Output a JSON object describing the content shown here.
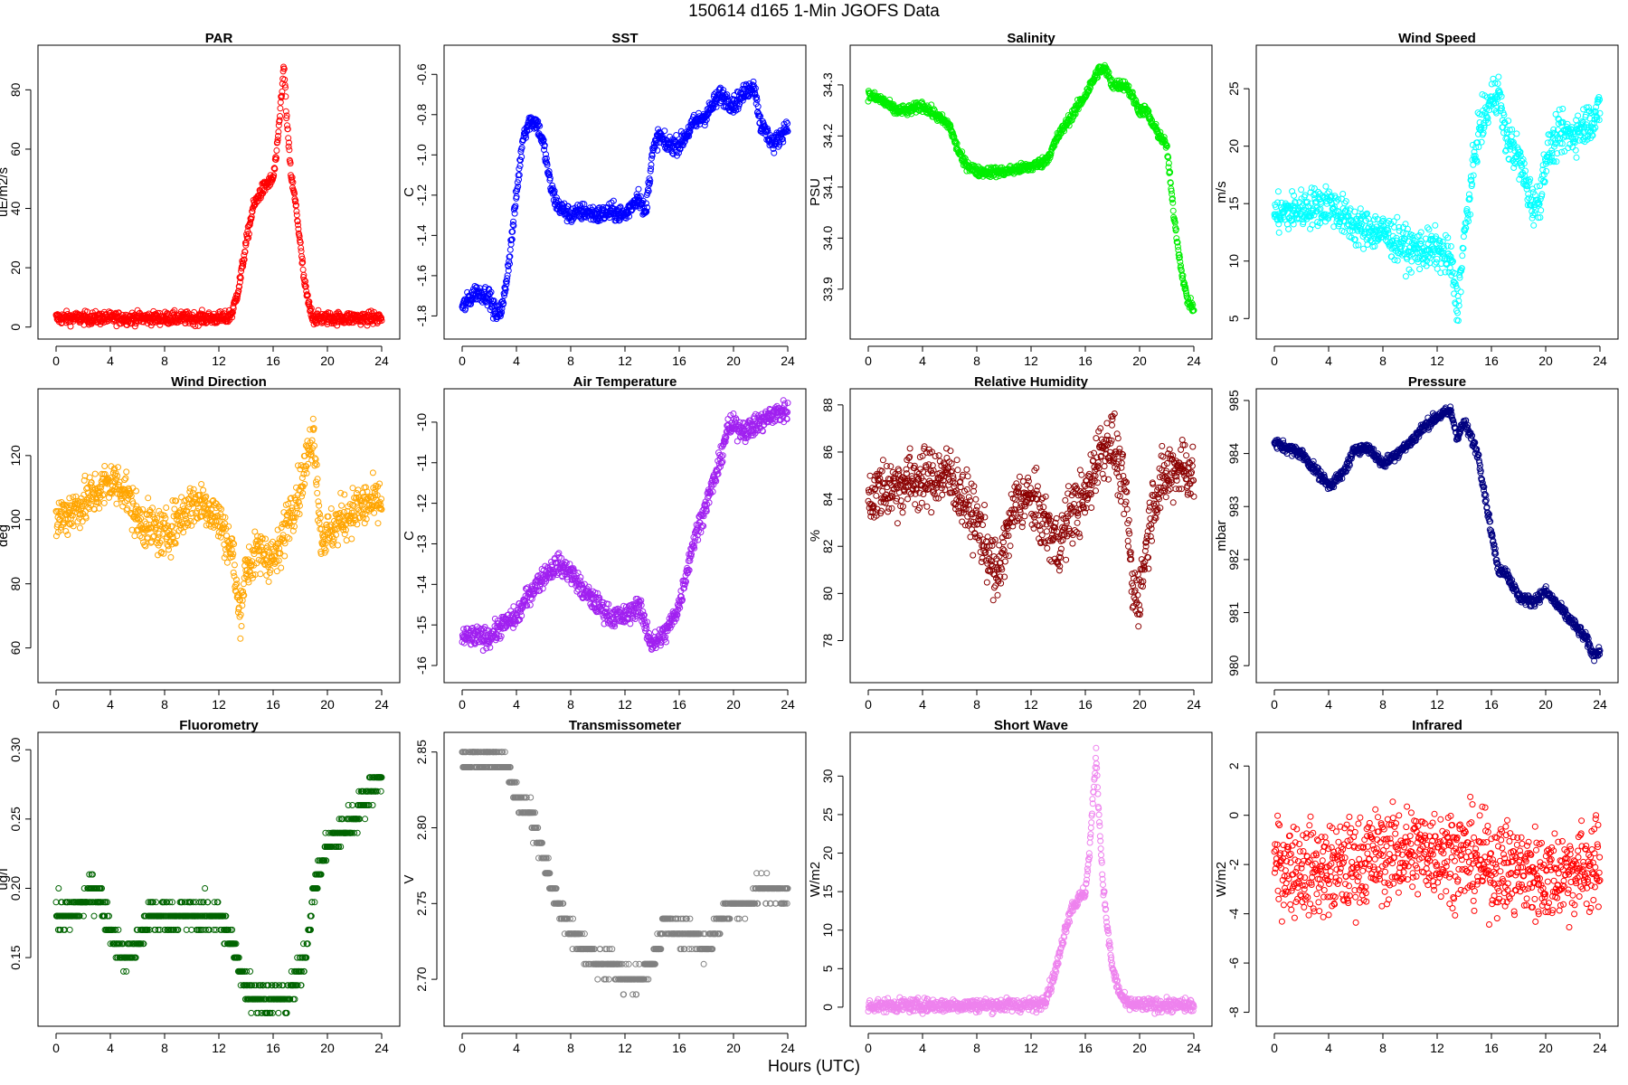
{
  "figure": {
    "title": "150614   d165   1-Min  JGOFS Data",
    "xlabel": "Hours (UTC)"
  },
  "chart_data": [
    {
      "type": "scatter",
      "title": "PAR",
      "ylabel": "uE/m2/s",
      "color": "#ff0000",
      "xlim": [
        0,
        24
      ],
      "ylim": [
        -1,
        92
      ],
      "xticks": [
        0,
        4,
        8,
        12,
        16,
        20,
        24
      ],
      "yticks": [
        0,
        20,
        40,
        60,
        80
      ],
      "ytick_labels": [
        "0",
        "20",
        "40",
        "60",
        "80"
      ],
      "profile": {
        "x": [
          0,
          12.6,
          13.0,
          13.5,
          14.0,
          14.5,
          15.0,
          15.5,
          16.0,
          16.3,
          16.6,
          16.8,
          17.0,
          17.3,
          17.7,
          18.0,
          18.3,
          18.7,
          19.0,
          19.3,
          24
        ],
        "y": [
          3,
          3,
          5,
          14,
          28,
          40,
          45,
          48,
          50,
          60,
          78,
          88,
          70,
          52,
          40,
          28,
          15,
          6,
          3,
          3,
          3
        ]
      },
      "noise": 1.5
    },
    {
      "type": "scatter",
      "title": "SST",
      "ylabel": "C",
      "color": "#0000ff",
      "xlim": [
        0,
        24
      ],
      "ylim": [
        -1.87,
        -0.5
      ],
      "xticks": [
        0,
        4,
        8,
        12,
        16,
        20,
        24
      ],
      "yticks": [
        -1.8,
        -1.6,
        -1.4,
        -1.2,
        -1.0,
        -0.8,
        -0.6
      ],
      "ytick_labels": [
        "-1.8",
        "-1.6",
        "-1.4",
        "-1.2",
        "-1.0",
        "-0.8",
        "-0.6"
      ],
      "profile": {
        "x": [
          0,
          0.5,
          1,
          2,
          2.5,
          3,
          3.5,
          4,
          4.5,
          5,
          5.5,
          6,
          6.5,
          7,
          8,
          9,
          10,
          11,
          12,
          13,
          13.5,
          14,
          14.5,
          15,
          16,
          17,
          18,
          19,
          20,
          21,
          21.5,
          22,
          23,
          24
        ],
        "y": [
          -1.76,
          -1.72,
          -1.68,
          -1.7,
          -1.8,
          -1.75,
          -1.5,
          -1.2,
          -0.9,
          -0.83,
          -0.84,
          -0.95,
          -1.15,
          -1.25,
          -1.3,
          -1.28,
          -1.3,
          -1.28,
          -1.3,
          -1.2,
          -1.3,
          -1.0,
          -0.9,
          -0.95,
          -0.95,
          -0.85,
          -0.8,
          -0.7,
          -0.75,
          -0.68,
          -0.65,
          -0.85,
          -0.95,
          -0.85
        ]
      },
      "noise": 0.03
    },
    {
      "type": "scatter",
      "title": "Salinity",
      "ylabel": "PSU",
      "color": "#00ee00",
      "xlim": [
        0,
        24
      ],
      "ylim": [
        33.82,
        34.36
      ],
      "xticks": [
        0,
        4,
        8,
        12,
        16,
        20,
        24
      ],
      "yticks": [
        33.9,
        34.0,
        34.1,
        34.2,
        34.3
      ],
      "ytick_labels": [
        "33.9",
        "34.0",
        "34.1",
        "34.2",
        "34.3"
      ],
      "profile": {
        "x": [
          0,
          1,
          2,
          3,
          4,
          5,
          6,
          6.5,
          7,
          7.5,
          8,
          10,
          12,
          13,
          13.5,
          14,
          15,
          16,
          17,
          17.5,
          18,
          19,
          20,
          20.5,
          21,
          22,
          22.5,
          23,
          23.5,
          24
        ],
        "y": [
          34.28,
          34.27,
          34.25,
          34.25,
          34.26,
          34.24,
          34.22,
          34.18,
          34.15,
          34.14,
          34.13,
          34.13,
          34.14,
          34.15,
          34.17,
          34.2,
          34.24,
          34.28,
          34.33,
          34.33,
          34.3,
          34.3,
          34.25,
          34.25,
          34.22,
          34.18,
          34.05,
          33.95,
          33.88,
          33.86
        ]
      },
      "noise": 0.007
    },
    {
      "type": "scatter",
      "title": "Wind Speed",
      "ylabel": "m/s",
      "color": "#00ffff",
      "xlim": [
        0,
        24
      ],
      "ylim": [
        4,
        28
      ],
      "xticks": [
        0,
        4,
        8,
        12,
        16,
        20,
        24
      ],
      "yticks": [
        5,
        10,
        15,
        20,
        25
      ],
      "ytick_labels": [
        "5",
        "10",
        "15",
        "20",
        "25"
      ],
      "profile": {
        "x": [
          0,
          2,
          4,
          6,
          8,
          10,
          12,
          13,
          13.5,
          14,
          15,
          16,
          16.5,
          17,
          18,
          19,
          19.5,
          20,
          21,
          22,
          23,
          24
        ],
        "y": [
          14,
          14.5,
          15,
          13,
          12.5,
          11,
          11,
          10,
          6,
          12,
          21,
          24,
          25,
          21,
          19,
          15,
          15,
          19,
          21,
          21,
          22,
          23
        ]
      },
      "noise": 1.2
    },
    {
      "type": "scatter",
      "title": "Wind Direction",
      "ylabel": "deg",
      "color": "#ffa500",
      "xlim": [
        0,
        24
      ],
      "ylim": [
        52,
        138
      ],
      "xticks": [
        0,
        4,
        8,
        12,
        16,
        20,
        24
      ],
      "yticks": [
        60,
        80,
        100,
        120
      ],
      "ytick_labels": [
        "60",
        "80",
        "100",
        "120"
      ],
      "profile": {
        "x": [
          0,
          2,
          4,
          5,
          6,
          8,
          9,
          10,
          11,
          12,
          13,
          13.5,
          14,
          15,
          16,
          16.5,
          17,
          18,
          19,
          19.5,
          20,
          21,
          22,
          23,
          24
        ],
        "y": [
          100,
          105,
          112,
          110,
          100,
          95,
          100,
          105,
          105,
          100,
          90,
          70,
          85,
          90,
          88,
          90,
          100,
          110,
          128,
          95,
          95,
          100,
          103,
          105,
          105
        ]
      },
      "noise": 5
    },
    {
      "type": "scatter",
      "title": "Air Temperature",
      "ylabel": "C",
      "color": "#a020f0",
      "xlim": [
        0,
        24
      ],
      "ylim": [
        -16.2,
        -9.4
      ],
      "xticks": [
        0,
        4,
        8,
        12,
        16,
        20,
        24
      ],
      "yticks": [
        -16,
        -15,
        -14,
        -13,
        -12,
        -11,
        -10
      ],
      "ytick_labels": [
        "-16",
        "-15",
        "-14",
        "-13",
        "-12",
        "-11",
        "-10"
      ],
      "profile": {
        "x": [
          0,
          2,
          3,
          4,
          5,
          6,
          7,
          8,
          9,
          10,
          11,
          12,
          13,
          14,
          15,
          16,
          17,
          18,
          19,
          19.5,
          20,
          21,
          22,
          23,
          24
        ],
        "y": [
          -15.3,
          -15.3,
          -15.0,
          -14.8,
          -14.2,
          -13.8,
          -13.5,
          -13.7,
          -14.2,
          -14.5,
          -14.8,
          -14.8,
          -14.5,
          -15.5,
          -15.2,
          -14.5,
          -13,
          -12,
          -11,
          -10.2,
          -10.1,
          -10.2,
          -10,
          -9.8,
          -9.7
        ]
      },
      "noise": 0.18
    },
    {
      "type": "scatter",
      "title": "Relative Humidity",
      "ylabel": "%",
      "color": "#8b0000",
      "xlim": [
        0,
        24
      ],
      "ylim": [
        76.6,
        88.3
      ],
      "xticks": [
        0,
        4,
        8,
        12,
        16,
        20,
        24
      ],
      "yticks": [
        78,
        80,
        82,
        84,
        86,
        88
      ],
      "ytick_labels": [
        "78",
        "80",
        "82",
        "84",
        "86",
        "88"
      ],
      "profile": {
        "x": [
          0,
          1,
          2,
          3,
          4,
          5,
          6,
          7,
          8,
          9,
          9.5,
          10,
          11,
          12,
          13,
          14,
          15,
          16,
          17,
          18,
          19,
          19.5,
          20,
          21,
          22,
          23,
          24
        ],
        "y": [
          84,
          84.5,
          84.5,
          84.8,
          84.8,
          85,
          85,
          84,
          83,
          81.5,
          80.5,
          82,
          84,
          84,
          83,
          82,
          83.5,
          84,
          86,
          86.5,
          84,
          80,
          80,
          84,
          85,
          85.5,
          85
        ]
      },
      "noise": 0.9
    },
    {
      "type": "scatter",
      "title": "Pressure",
      "ylabel": "mbar",
      "color": "#000080",
      "xlim": [
        0,
        24
      ],
      "ylim": [
        979.85,
        985.05
      ],
      "xticks": [
        0,
        4,
        8,
        12,
        16,
        20,
        24
      ],
      "yticks": [
        980,
        981,
        982,
        983,
        984,
        985
      ],
      "ytick_labels": [
        "980",
        "981",
        "982",
        "983",
        "984",
        "985"
      ],
      "profile": {
        "x": [
          0,
          1,
          2,
          3,
          4,
          5,
          6,
          7,
          8,
          9,
          10,
          11,
          12,
          13,
          13.5,
          14,
          15,
          16,
          16.5,
          17,
          18,
          19,
          20,
          21,
          22,
          23,
          23.5,
          24
        ],
        "y": [
          984.2,
          984.1,
          984,
          983.7,
          983.4,
          983.6,
          984.1,
          984.1,
          983.8,
          984,
          984.2,
          984.5,
          984.7,
          984.8,
          984.3,
          984.6,
          984,
          982.5,
          981.8,
          981.8,
          981.3,
          981.2,
          981.4,
          981.1,
          980.8,
          980.5,
          980.2,
          980.3
        ]
      },
      "noise": 0.07
    },
    {
      "type": "scatter",
      "title": "Fluorometry",
      "ylabel": "ug/l",
      "color": "#006400",
      "xlim": [
        0,
        24
      ],
      "ylim": [
        0.107,
        0.306
      ],
      "xticks": [
        0,
        4,
        8,
        12,
        16,
        20,
        24
      ],
      "yticks": [
        0.15,
        0.2,
        0.25,
        0.3
      ],
      "ytick_labels": [
        "0.15",
        "0.20",
        "0.25",
        "0.30"
      ],
      "profile": {
        "x": [
          0,
          1,
          2,
          3,
          4,
          5,
          6,
          7,
          8,
          10,
          12,
          13,
          14,
          15,
          16,
          17,
          18,
          18.5,
          19,
          20,
          21,
          22,
          23,
          24
        ],
        "y": [
          0.18,
          0.18,
          0.19,
          0.2,
          0.17,
          0.15,
          0.16,
          0.18,
          0.18,
          0.18,
          0.18,
          0.16,
          0.13,
          0.12,
          0.12,
          0.12,
          0.14,
          0.16,
          0.2,
          0.23,
          0.24,
          0.25,
          0.27,
          0.28
        ]
      },
      "noise": 0.008,
      "quant": 0.01
    },
    {
      "type": "scatter",
      "title": "Transmissometer",
      "ylabel": "V",
      "color": "#808080",
      "xlim": [
        0,
        24
      ],
      "ylim": [
        2.675,
        2.857
      ],
      "xticks": [
        0,
        4,
        8,
        12,
        16,
        20,
        24
      ],
      "yticks": [
        2.7,
        2.75,
        2.8,
        2.85
      ],
      "ytick_labels": [
        "2.70",
        "2.75",
        "2.80",
        "2.85"
      ],
      "profile": {
        "x": [
          0,
          3,
          4,
          5,
          6,
          7,
          8,
          9,
          10,
          11,
          12,
          13,
          14,
          15,
          16,
          17,
          18,
          19,
          20,
          21,
          22,
          24
        ],
        "y": [
          2.845,
          2.845,
          2.82,
          2.81,
          2.78,
          2.75,
          2.73,
          2.72,
          2.71,
          2.71,
          2.7,
          2.7,
          2.71,
          2.74,
          2.73,
          2.73,
          2.72,
          2.74,
          2.75,
          2.75,
          2.76,
          2.755
        ]
      },
      "noise": 0.005,
      "quant": 0.01
    },
    {
      "type": "scatter",
      "title": "Short Wave",
      "ylabel": "W/m2",
      "color": "#ee82ee",
      "xlim": [
        0,
        24
      ],
      "ylim": [
        -1.3,
        34.5
      ],
      "xticks": [
        0,
        4,
        8,
        12,
        16,
        20,
        24
      ],
      "yticks": [
        0,
        5,
        10,
        15,
        20,
        25,
        30
      ],
      "ytick_labels": [
        "0",
        "5",
        "10",
        "15",
        "20",
        "25",
        "30"
      ],
      "profile": {
        "x": [
          0,
          12.5,
          13,
          13.5,
          14,
          14.5,
          15,
          15.5,
          16,
          16.3,
          16.6,
          16.8,
          17,
          17.3,
          17.7,
          18,
          18.5,
          19,
          19.5,
          24
        ],
        "y": [
          0.2,
          0.3,
          1,
          3,
          6,
          10,
          13,
          14,
          15,
          20,
          28,
          33,
          25,
          16,
          9,
          5,
          2,
          0.5,
          0.3,
          0.2
        ]
      },
      "noise": 0.6
    },
    {
      "type": "scatter",
      "title": "Infrared",
      "ylabel": "W/m2",
      "color": "#ff0000",
      "xlim": [
        0,
        24
      ],
      "ylim": [
        -8.2,
        3.0
      ],
      "xticks": [
        0,
        4,
        8,
        12,
        16,
        20,
        24
      ],
      "yticks": [
        -8,
        -6,
        -4,
        -2,
        0,
        2
      ],
      "ytick_labels": [
        "-8",
        "-6",
        "-4",
        "-2",
        "0",
        "2"
      ],
      "profile": {
        "x": [
          0,
          4,
          8,
          12,
          16,
          20,
          24
        ],
        "y": [
          -2,
          -2.3,
          -1.6,
          -1.4,
          -2,
          -2.5,
          -2
        ]
      },
      "noise": 1.3
    }
  ]
}
